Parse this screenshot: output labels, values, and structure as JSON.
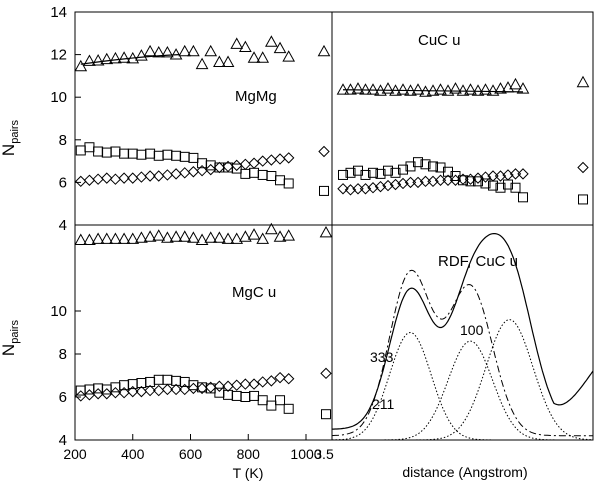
{
  "chart_data": {
    "type": "scatter",
    "panels": [
      {
        "id": "mgmg",
        "label": "MgMg",
        "x": [
          220,
          250,
          280,
          310,
          340,
          370,
          400,
          430,
          460,
          490,
          520,
          550,
          580,
          610,
          640,
          670,
          700,
          730,
          760,
          790,
          820,
          850,
          880,
          910,
          940
        ],
        "series": [
          {
            "marker": "triangle",
            "y": [
              11.45,
              11.7,
              11.72,
              11.78,
              11.82,
              11.85,
              11.82,
              11.95,
              12.15,
              12.1,
              12.1,
              12.0,
              12.15,
              12.15,
              11.55,
              12.15,
              11.65,
              11.65,
              12.5,
              12.35,
              11.85,
              11.85,
              12.6,
              12.3,
              11.9
            ]
          },
          {
            "marker": "square",
            "y": [
              7.5,
              7.65,
              7.45,
              7.4,
              7.45,
              7.35,
              7.35,
              7.3,
              7.35,
              7.25,
              7.3,
              7.25,
              7.2,
              7.15,
              6.9,
              6.8,
              6.7,
              6.7,
              6.65,
              6.4,
              6.45,
              6.35,
              6.3,
              6.1,
              5.95
            ]
          },
          {
            "marker": "diamond",
            "y": [
              6.05,
              6.1,
              6.15,
              6.2,
              6.15,
              6.2,
              6.2,
              6.25,
              6.3,
              6.3,
              6.35,
              6.4,
              6.45,
              6.5,
              6.55,
              6.6,
              6.7,
              6.75,
              6.8,
              6.85,
              6.9,
              7.0,
              7.05,
              7.1,
              7.15
            ]
          }
        ],
        "fit_line": {
          "x": [
            220,
            560
          ],
          "y": [
            11.55,
            12.0
          ]
        },
        "extra_points": [
          {
            "marker": "triangle",
            "y": 12.15
          },
          {
            "marker": "diamond",
            "y": 7.45
          },
          {
            "marker": "square",
            "y": 5.6
          }
        ]
      },
      {
        "id": "cucu",
        "label": "CuC  u",
        "series": [
          {
            "marker": "triangle",
            "y": [
              10.35,
              10.35,
              10.4,
              10.35,
              10.35,
              10.3,
              10.4,
              10.3,
              10.35,
              10.3,
              10.35,
              10.25,
              10.3,
              10.35,
              10.3,
              10.4,
              10.3,
              10.35,
              10.3,
              10.35,
              10.3,
              10.4,
              10.45,
              10.6,
              10.4
            ]
          },
          {
            "marker": "square",
            "y": [
              6.35,
              6.45,
              6.55,
              6.35,
              6.45,
              6.4,
              6.55,
              6.45,
              6.6,
              6.75,
              6.95,
              6.85,
              6.75,
              6.7,
              6.5,
              6.3,
              6.1,
              6.05,
              6.05,
              5.95,
              5.85,
              5.75,
              5.9,
              5.75,
              5.3
            ]
          },
          {
            "marker": "diamond",
            "y": [
              5.7,
              5.65,
              5.7,
              5.7,
              5.75,
              5.8,
              5.85,
              5.9,
              5.95,
              6.0,
              6.0,
              6.05,
              6.05,
              6.1,
              6.1,
              6.1,
              6.15,
              6.15,
              6.2,
              6.25,
              6.3,
              6.3,
              6.35,
              6.4,
              6.4
            ]
          }
        ],
        "fit_line": {
          "y": [
            10.35,
            10.25
          ]
        },
        "extra_points": [
          {
            "marker": "triangle",
            "y": 10.7
          },
          {
            "marker": "diamond",
            "y": 6.7
          },
          {
            "marker": "square",
            "y": 5.2
          }
        ]
      },
      {
        "id": "mgcu",
        "label": "MgC  u",
        "x": [
          220,
          250,
          280,
          310,
          340,
          370,
          400,
          430,
          460,
          490,
          520,
          550,
          580,
          610,
          640,
          670,
          700,
          730,
          760,
          790,
          820,
          850,
          880,
          910,
          940
        ],
        "series": [
          {
            "marker": "triangle",
            "y": [
              13.3,
              13.3,
              13.35,
              13.35,
              13.35,
              13.35,
              13.35,
              13.4,
              13.45,
              13.5,
              13.4,
              13.45,
              13.45,
              13.4,
              13.3,
              13.4,
              13.4,
              13.35,
              13.35,
              13.45,
              13.55,
              13.35,
              13.8,
              13.45,
              13.5
            ]
          },
          {
            "marker": "square",
            "y": [
              6.3,
              6.35,
              6.4,
              6.35,
              6.45,
              6.55,
              6.6,
              6.65,
              6.7,
              6.8,
              6.8,
              6.75,
              6.7,
              6.55,
              6.45,
              6.4,
              6.2,
              6.1,
              6.05,
              6.0,
              6.05,
              5.85,
              5.6,
              5.85,
              5.45
            ]
          },
          {
            "marker": "diamond",
            "y": [
              6.05,
              6.1,
              6.15,
              6.15,
              6.2,
              6.2,
              6.25,
              6.25,
              6.3,
              6.3,
              6.35,
              6.35,
              6.35,
              6.4,
              6.4,
              6.45,
              6.5,
              6.5,
              6.55,
              6.6,
              6.6,
              6.7,
              6.75,
              6.9,
              6.85
            ]
          }
        ],
        "extra_points": [
          {
            "marker": "triangle",
            "y": 13.65
          },
          {
            "marker": "diamond",
            "y": 7.1
          },
          {
            "marker": "square",
            "y": 5.2
          }
        ]
      },
      {
        "id": "rdf",
        "label": "RDF, CuC  u",
        "curve_labels": [
          "100",
          "333",
          "211"
        ],
        "peaks": [
          {
            "label": "333",
            "center": 0.3,
            "height": 0.5,
            "width": 0.08
          },
          {
            "label": "211",
            "center": 0.53,
            "height": 0.46,
            "width": 0.085
          },
          {
            "label": "100",
            "center": 0.68,
            "height": 0.56,
            "width": 0.09
          }
        ]
      }
    ],
    "yticks": [
      4,
      6,
      8,
      10,
      12,
      14
    ],
    "ylim": [
      4,
      14
    ],
    "xticks": [
      200,
      400,
      600,
      800,
      1000
    ],
    "xlim": [
      200,
      1090
    ],
    "right_x_tick": "3.5",
    "xlabel_left": "T (K)",
    "xlabel_right": "distance (Angstrom)",
    "ylabel_main": "N",
    "ylabel_sub": "pairs"
  }
}
